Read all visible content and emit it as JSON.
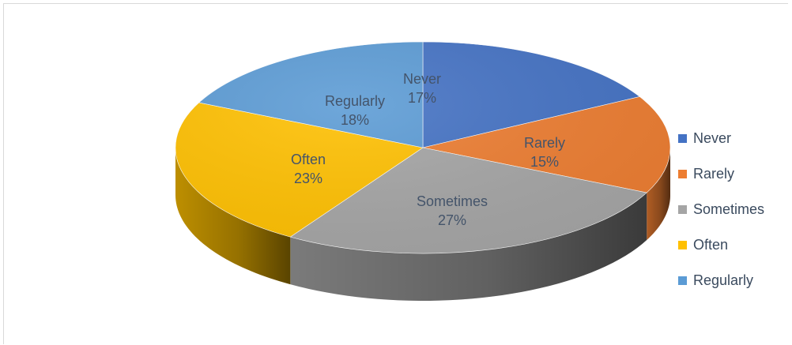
{
  "chart_data": {
    "type": "pie",
    "style": "3d",
    "categories": [
      "Never",
      "Rarely",
      "Sometimes",
      "Often",
      "Regularly"
    ],
    "values": [
      17,
      15,
      27,
      23,
      18
    ],
    "value_labels": [
      "17%",
      "15%",
      "27%",
      "23%",
      "18%"
    ],
    "colors": [
      "#4472c4",
      "#ed7d31",
      "#a5a5a5",
      "#ffc000",
      "#5b9bd5"
    ],
    "legend_position": "right"
  }
}
